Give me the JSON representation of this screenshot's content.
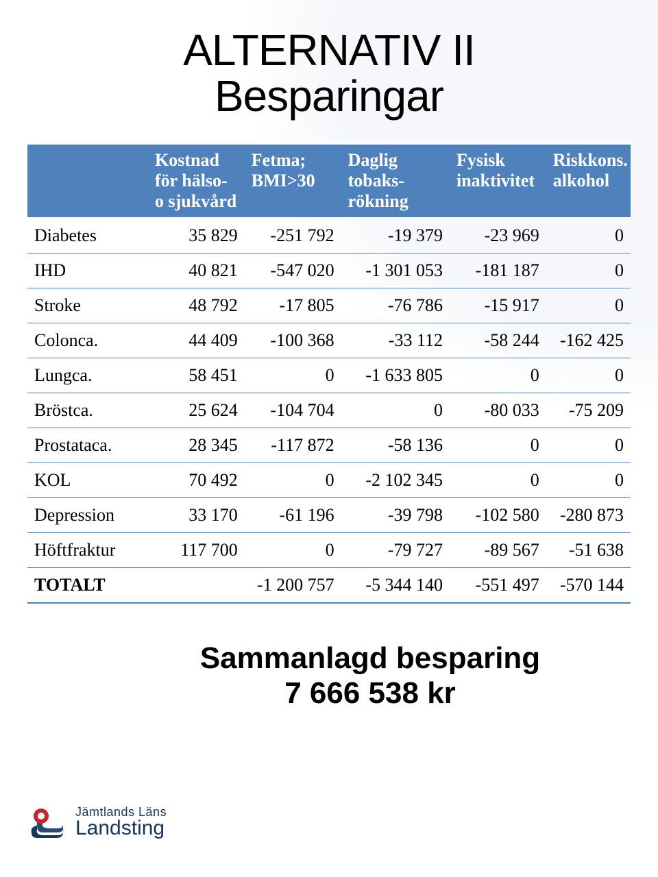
{
  "title_line1": "ALTERNATIV II",
  "title_line2": "Besparingar",
  "table": {
    "header_bg": "#4f81bd",
    "header_text_color": "#ffffff",
    "border_color": "#4f81bd",
    "font_size_pt": 20,
    "columns": [
      "",
      "Kostnad för hälso-\no sjukvård",
      "Fetma; BMI>30",
      "Daglig tobaks-\nrökning",
      "Fysisk inaktivitet",
      "Riskkons. alkohol"
    ],
    "rows": [
      {
        "label": "Diabetes",
        "values": [
          "35 829",
          "-251 792",
          "-19 379",
          "-23 969",
          "0"
        ]
      },
      {
        "label": "IHD",
        "values": [
          "40 821",
          "-547 020",
          "-1 301 053",
          "-181 187",
          "0"
        ]
      },
      {
        "label": "Stroke",
        "values": [
          "48 792",
          "-17 805",
          "-76 786",
          "-15 917",
          "0"
        ]
      },
      {
        "label": "Colonca.",
        "values": [
          "44 409",
          "-100 368",
          "-33 112",
          "-58 244",
          "-162 425"
        ]
      },
      {
        "label": "Lungca.",
        "values": [
          "58 451",
          "0",
          "-1 633 805",
          "0",
          "0"
        ]
      },
      {
        "label": "Bröstca.",
        "values": [
          "25 624",
          "-104 704",
          "0",
          "-80 033",
          "-75 209"
        ]
      },
      {
        "label": "Prostataca.",
        "values": [
          "28 345",
          "-117 872",
          "-58 136",
          "0",
          "0"
        ]
      },
      {
        "label": "KOL",
        "values": [
          "70 492",
          "0",
          "-2 102 345",
          "0",
          "0"
        ]
      },
      {
        "label": "Depression",
        "values": [
          "33 170",
          "-61 196",
          "-39 798",
          "-102 580",
          "-280 873"
        ]
      },
      {
        "label": "Höftfraktur",
        "values": [
          "117 700",
          "0",
          "-79 727",
          "-89 567",
          "-51 638"
        ]
      }
    ],
    "total": {
      "label": "TOTALT",
      "values": [
        "",
        "-1 200 757",
        "-5 344 140",
        "-551 497",
        "-570 144"
      ]
    }
  },
  "summary_line1": "Sammanlagd besparing",
  "summary_line2": "7 666 538 kr",
  "logo": {
    "line1": "Jämtlands Läns",
    "line2": "Landsting",
    "accent_red": "#c1272d",
    "accent_blue": "#16365d"
  }
}
